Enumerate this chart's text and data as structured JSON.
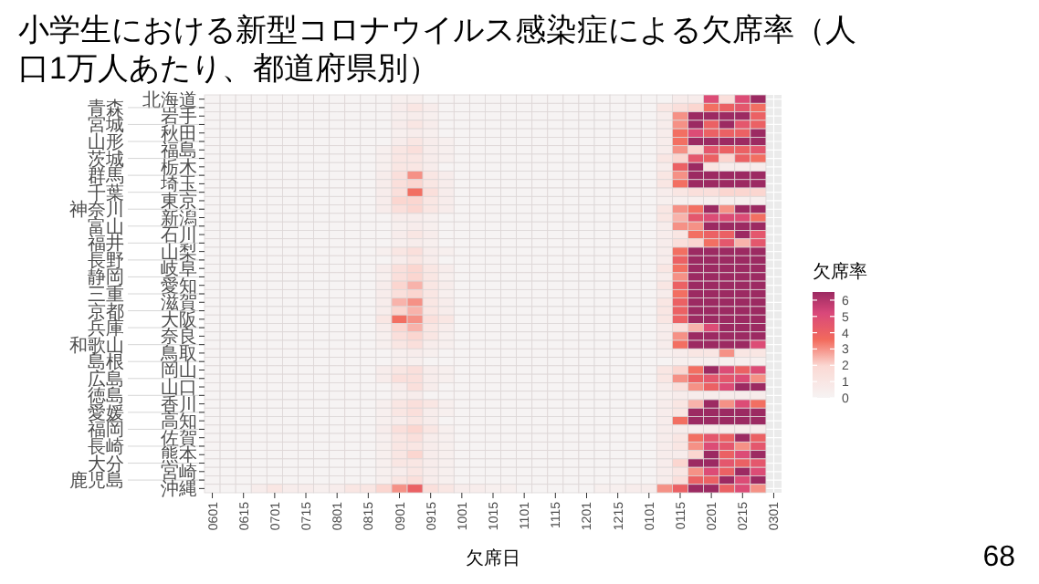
{
  "chart_data": {
    "type": "heatmap",
    "title": "小学生における新型コロナウイルス感染症による欠席率（人口1万人あたり、都道府県別）",
    "xlabel": "欠席日",
    "clabel": "欠席率",
    "clim": [
      0,
      6.5
    ],
    "cticks": [
      0,
      1,
      2,
      3,
      4,
      5,
      6
    ],
    "grid": true,
    "annotations": [
      "68"
    ],
    "categories": [
      "0601",
      null,
      "0615",
      null,
      "0701",
      null,
      "0715",
      null,
      "0801",
      null,
      "0815",
      null,
      "0901",
      null,
      "0915",
      null,
      "1001",
      null,
      "1015",
      null,
      "1101",
      null,
      "1115",
      null,
      "1201",
      null,
      "1215",
      null,
      "0101",
      null,
      "0115",
      null,
      "0201",
      null,
      "0215",
      null,
      "0301"
    ],
    "y_categories": [
      "北海道",
      "青森",
      "岩手",
      "宮城",
      "秋田",
      "山形",
      "福島",
      "茨城",
      "栃木",
      "群馬",
      "埼玉",
      "千葉",
      "東京",
      "神奈川",
      "新潟",
      "富山",
      "石川",
      "福井",
      "山梨",
      "長野",
      "岐阜",
      "静岡",
      "愛知",
      "三重",
      "滋賀",
      "京都",
      "大阪",
      "兵庫",
      "奈良",
      "和歌山",
      "鳥取",
      "島根",
      "岡山",
      "広島",
      "山口",
      "徳島",
      "香川",
      "愛媛",
      "高知",
      "福岡",
      "佐賀",
      "長崎",
      "熊本",
      "大分",
      "宮崎",
      "鹿児島",
      "沖縄"
    ],
    "cells": [
      [
        0,
        0,
        0,
        0,
        0,
        0,
        0,
        0,
        0,
        0,
        0,
        0,
        0.3,
        0.3,
        0,
        0,
        0,
        0,
        0,
        0,
        0,
        0,
        0,
        0,
        0,
        0,
        0,
        0,
        0,
        0,
        0.5,
        0.5,
        5,
        1.5,
        5,
        6.5,
        null
      ],
      [
        0,
        0,
        0,
        0,
        0,
        0,
        0,
        0,
        0,
        0,
        0,
        0,
        0.5,
        1,
        0.5,
        0,
        0,
        0,
        0,
        0,
        0,
        0,
        0,
        0,
        0,
        0,
        0,
        0,
        0,
        1,
        1.5,
        2,
        3.5,
        4,
        4.5,
        3.5,
        null
      ],
      [
        0,
        0,
        0,
        0,
        0,
        0,
        0,
        0,
        0,
        0,
        0,
        0,
        0.3,
        0.5,
        0.3,
        0,
        0,
        0,
        0,
        0,
        0,
        0,
        0,
        0,
        0,
        0,
        0,
        0,
        0,
        0.5,
        3,
        6.5,
        6.5,
        6.5,
        6.5,
        4,
        null
      ],
      [
        0,
        0,
        0,
        0,
        0,
        0,
        0,
        0,
        0,
        0,
        0,
        0,
        0.5,
        1,
        0.5,
        0,
        0,
        0,
        0,
        0,
        0,
        0,
        0,
        0,
        0,
        0,
        0,
        0,
        0,
        0.5,
        3,
        6.5,
        4,
        6.5,
        4.5,
        4,
        null
      ],
      [
        0,
        0,
        0,
        0,
        0,
        0,
        0,
        0,
        0,
        0,
        0,
        0,
        0.3,
        0.5,
        0.3,
        0,
        0,
        0,
        0,
        0,
        0,
        0,
        0,
        0,
        0,
        0,
        0,
        0,
        0,
        0.5,
        3.5,
        5,
        4,
        4,
        4,
        6.5,
        null
      ],
      [
        0,
        0,
        0,
        0,
        0,
        0,
        0,
        0,
        0,
        0,
        0,
        0,
        0.5,
        1,
        0.5,
        0.3,
        0,
        0,
        0,
        0,
        0,
        0,
        0,
        0,
        0,
        0,
        0,
        0,
        0,
        0.5,
        3.5,
        6.5,
        6.5,
        6.5,
        6.5,
        6.5,
        null
      ],
      [
        0,
        0,
        0,
        0,
        0,
        0,
        0,
        0,
        0,
        0,
        0,
        0.3,
        1,
        1.5,
        0.5,
        0.3,
        0,
        0,
        0,
        0,
        0,
        0,
        0,
        0,
        0,
        0,
        0,
        0,
        0,
        0.5,
        3,
        2,
        4.5,
        4,
        4,
        4.5,
        null
      ],
      [
        0,
        0,
        0,
        0,
        0,
        0,
        0,
        0,
        0,
        0,
        0,
        0.3,
        1,
        1,
        0.5,
        0.3,
        0,
        0,
        0,
        0,
        0,
        0,
        0,
        0,
        0,
        0,
        0,
        0,
        0,
        1,
        2,
        4.5,
        4,
        2,
        4,
        3.5,
        null
      ],
      [
        0,
        0,
        0,
        0,
        0,
        0,
        0,
        0,
        0,
        0,
        0,
        0.3,
        1,
        1,
        0.5,
        0,
        0,
        0,
        0,
        0,
        0,
        0,
        0,
        0,
        0,
        0,
        0,
        0,
        0,
        0.5,
        4,
        6.5,
        1,
        0.5,
        0.5,
        0.5,
        null
      ],
      [
        0,
        0,
        0,
        0,
        0,
        0,
        0,
        0,
        0,
        0,
        0,
        0.5,
        1.5,
        3,
        1,
        0.5,
        0,
        0,
        0,
        0,
        0,
        0,
        0,
        0,
        0,
        0,
        0,
        0,
        0,
        1,
        3,
        6.5,
        6.5,
        6.5,
        6.5,
        6.5,
        null
      ],
      [
        0,
        0,
        0,
        0,
        0,
        0,
        0,
        0,
        0,
        0,
        0,
        0.5,
        1.5,
        2,
        1,
        0.5,
        0,
        0,
        0,
        0,
        0,
        0,
        0,
        0,
        0,
        0,
        0,
        0,
        0,
        1,
        3.5,
        6.5,
        6.5,
        6.5,
        6.5,
        6.5,
        null
      ],
      [
        0,
        0,
        0,
        0,
        0,
        0,
        0,
        0,
        0,
        0,
        0,
        0.5,
        1.5,
        3.5,
        1.5,
        0.5,
        0,
        0,
        0,
        0,
        0,
        0,
        0,
        0,
        0,
        0,
        0,
        0,
        0,
        0.5,
        1,
        1.5,
        1.5,
        2,
        2,
        2,
        null
      ],
      [
        0,
        0,
        0,
        0,
        0,
        0,
        0,
        0,
        0,
        0,
        0,
        0.5,
        2,
        2,
        1,
        0.5,
        0,
        0,
        0,
        0,
        0,
        0,
        0,
        0,
        0,
        0,
        0,
        0,
        0,
        0.3,
        0.3,
        0.3,
        0.3,
        0.3,
        0.3,
        0.3,
        null
      ],
      [
        0,
        0,
        0,
        0,
        0,
        0,
        0,
        0,
        0,
        0,
        0,
        0.5,
        1.5,
        2,
        1,
        0.5,
        0,
        0,
        0,
        0,
        0,
        0,
        0,
        0,
        0,
        0,
        0,
        0,
        0,
        1,
        3,
        3.5,
        6.5,
        3,
        6.5,
        6.5,
        null
      ],
      [
        0,
        0,
        0,
        0,
        0,
        0,
        0,
        0,
        0,
        0,
        0,
        0,
        0.5,
        0.5,
        0.3,
        0,
        0,
        0,
        0,
        0,
        0,
        0,
        0,
        0,
        0,
        0,
        0,
        0,
        0,
        1,
        2.5,
        4.5,
        5,
        5,
        5,
        3.5,
        null
      ],
      [
        0,
        0,
        0,
        0,
        0,
        0,
        0,
        0,
        0,
        0,
        0,
        0,
        0.3,
        0.5,
        0.3,
        0,
        0,
        0,
        0,
        0,
        0,
        0,
        0,
        0,
        0,
        0,
        0,
        0,
        0,
        0.5,
        3,
        3,
        6.5,
        6.5,
        6.5,
        6.5,
        null
      ],
      [
        0,
        0,
        0,
        0,
        0,
        0,
        0,
        0,
        0,
        0,
        0,
        0,
        0.5,
        1,
        0.5,
        0,
        0,
        0,
        0,
        0,
        0,
        0,
        0,
        0,
        0,
        0,
        0,
        0,
        0,
        0.5,
        1,
        3.5,
        4,
        4,
        6.5,
        4.5,
        null
      ],
      [
        0,
        0,
        0,
        0,
        0,
        0,
        0,
        0,
        0,
        0,
        0,
        0,
        0.3,
        0.5,
        0.3,
        0,
        0,
        0,
        0,
        0,
        0,
        0,
        0,
        0,
        0,
        0,
        0,
        0,
        0,
        0.5,
        1.5,
        2,
        3.5,
        4.5,
        2.5,
        4.5,
        null
      ],
      [
        0,
        0,
        0,
        0,
        0,
        0,
        0,
        0,
        0,
        0,
        0,
        0.3,
        1,
        1.5,
        0.5,
        0.3,
        0,
        0,
        0,
        0,
        0,
        0,
        0,
        0,
        0,
        0,
        0,
        0,
        0,
        0.5,
        3.5,
        6.5,
        6.5,
        6.5,
        6.5,
        6.5,
        null
      ],
      [
        0,
        0,
        0,
        0,
        0,
        0,
        0,
        0,
        0,
        0,
        0,
        0,
        0.5,
        1,
        0.5,
        0,
        0,
        0,
        0,
        0,
        0,
        0,
        0,
        0,
        0,
        0,
        0,
        0,
        0,
        0.5,
        4,
        6.5,
        6.5,
        6.5,
        6.5,
        6.5,
        null
      ],
      [
        0,
        0,
        0,
        0,
        0,
        0,
        0,
        0,
        0,
        0,
        0,
        0.5,
        1.5,
        2,
        1,
        0.5,
        0,
        0,
        0,
        0,
        0,
        0,
        0,
        0,
        0,
        0,
        0,
        0,
        0,
        1,
        3.5,
        6.5,
        6.5,
        6.5,
        6.5,
        6.5,
        null
      ],
      [
        0,
        0,
        0,
        0,
        0,
        0,
        0,
        0,
        0,
        0,
        0,
        0.3,
        1.5,
        2,
        1,
        0.3,
        0,
        0,
        0,
        0,
        0,
        0,
        0,
        0,
        0,
        0,
        0,
        0,
        0,
        0.5,
        3,
        6.5,
        6.5,
        6.5,
        6.5,
        6.5,
        null
      ],
      [
        0,
        0,
        0,
        0,
        0,
        0,
        0,
        0,
        0,
        0,
        0,
        0.5,
        2,
        2.5,
        1,
        0.5,
        0,
        0,
        0,
        0,
        0,
        0,
        0,
        0,
        0,
        0,
        0,
        0,
        0,
        1,
        4,
        6.5,
        6.5,
        6.5,
        6.5,
        6.5,
        null
      ],
      [
        0,
        0,
        0,
        0,
        0,
        0,
        0,
        0,
        0,
        0,
        0,
        0.5,
        1.5,
        2,
        1,
        0.3,
        0,
        0,
        0,
        0,
        0,
        0,
        0,
        0,
        0,
        0,
        0,
        0,
        0,
        0.5,
        3.5,
        6.5,
        6.5,
        6.5,
        6.5,
        6.5,
        null
      ],
      [
        0,
        0,
        0,
        0,
        0,
        0,
        0,
        0,
        0,
        0,
        0,
        0.5,
        2.5,
        3,
        1,
        0.5,
        0,
        0,
        0,
        0,
        0,
        0,
        0,
        0,
        0,
        0,
        0,
        0,
        0,
        1,
        4,
        6.5,
        6.5,
        6.5,
        6.5,
        6.5,
        null
      ],
      [
        0,
        0,
        0,
        0,
        0,
        0,
        0,
        0,
        0,
        0,
        0,
        0.5,
        2,
        2.5,
        1,
        0.5,
        0,
        0,
        0,
        0,
        0,
        0,
        0,
        0,
        0,
        0,
        0,
        0,
        0,
        1,
        4,
        6.5,
        6.5,
        6.5,
        6.5,
        6.5,
        null
      ],
      [
        0,
        0,
        0,
        0,
        0,
        0,
        0,
        0,
        0,
        0,
        0,
        1,
        3.5,
        3,
        1.5,
        1,
        0,
        0,
        0,
        0,
        0,
        0,
        0,
        0,
        0,
        0,
        0,
        0,
        0,
        1,
        4,
        6.5,
        6.5,
        6.5,
        6.5,
        6.5,
        null
      ],
      [
        0,
        0,
        0,
        0,
        0,
        0,
        0,
        0,
        0,
        0,
        0,
        0.5,
        2,
        2.5,
        1,
        0.5,
        0,
        0,
        0,
        0,
        0,
        0,
        0,
        0,
        0,
        0,
        0,
        0,
        0,
        0.5,
        1.5,
        2.5,
        5,
        6.5,
        6.5,
        6.5,
        null
      ],
      [
        0,
        0,
        0,
        0,
        0,
        0,
        0,
        0,
        0,
        0,
        0,
        0.3,
        1.5,
        2,
        1,
        0.3,
        0,
        0,
        0,
        0,
        0,
        0,
        0,
        0,
        0,
        0,
        0,
        0,
        0,
        0.5,
        3,
        6.5,
        6.5,
        6.5,
        6.5,
        6.5,
        null
      ],
      [
        0,
        0,
        0,
        0,
        0,
        0,
        0,
        0,
        0,
        0,
        0,
        0.3,
        1,
        1.5,
        0.5,
        0.3,
        0,
        0,
        0,
        0,
        0,
        0,
        0,
        0,
        0,
        0,
        0,
        0,
        0,
        0.5,
        3.5,
        6.5,
        6.5,
        6.5,
        6.5,
        5,
        null
      ],
      [
        0,
        0,
        0,
        0,
        0,
        0,
        0,
        0,
        0,
        0,
        0,
        0,
        0.3,
        0.5,
        0.3,
        0,
        0,
        0,
        0,
        0,
        0,
        0,
        0,
        0,
        0,
        0,
        0,
        0,
        0,
        0.3,
        0.5,
        1,
        1,
        3,
        1,
        1,
        null
      ],
      [
        0,
        0,
        0,
        0,
        0,
        0,
        0,
        0,
        0,
        0,
        0,
        0,
        0.3,
        0.3,
        0,
        0,
        0,
        0,
        0,
        0,
        0,
        0,
        0,
        0,
        0,
        0,
        0,
        0,
        0,
        0,
        0.3,
        0.3,
        0.3,
        0.3,
        0.3,
        0.3,
        null
      ],
      [
        0,
        0,
        0,
        0,
        0,
        0,
        0,
        0,
        0,
        0,
        0,
        0.5,
        1,
        1.5,
        0.5,
        0.3,
        0,
        0,
        0,
        0,
        0,
        0,
        0,
        0,
        0,
        0,
        0,
        0,
        0,
        1,
        2,
        3.5,
        6.5,
        5,
        4,
        5,
        null
      ],
      [
        0,
        0,
        0,
        0,
        0,
        0,
        0,
        0,
        0,
        0,
        0,
        0.5,
        1.5,
        1.5,
        0.5,
        0.3,
        0,
        0,
        0,
        0,
        0,
        0,
        0,
        0,
        0,
        0,
        0,
        0,
        0,
        1,
        3,
        4,
        4.5,
        4.5,
        5,
        3,
        null
      ],
      [
        0,
        0,
        0,
        0,
        0,
        0,
        0,
        0,
        0,
        0,
        0,
        0,
        0.5,
        1.5,
        0.5,
        0,
        0,
        0,
        0,
        0,
        0,
        0,
        0,
        0,
        0,
        0,
        0,
        0,
        0,
        0.5,
        1.5,
        3,
        4,
        5,
        6.5,
        6.5,
        null
      ],
      [
        0,
        0,
        0,
        0,
        0,
        0,
        0,
        0,
        0,
        0,
        0,
        0,
        0.3,
        0.5,
        0,
        0,
        0,
        0,
        0,
        0,
        0,
        0,
        0,
        0,
        0,
        0,
        0,
        0,
        0,
        0.3,
        0.5,
        0.5,
        0.5,
        0.5,
        0.5,
        0.5,
        null
      ],
      [
        0,
        0,
        0,
        0,
        0,
        0,
        0,
        0,
        0,
        0,
        0,
        0.3,
        1,
        1.5,
        1,
        0.3,
        0,
        0,
        0,
        0,
        0,
        0,
        0,
        0,
        0,
        0,
        0,
        0,
        0,
        0.5,
        1,
        2.5,
        6.5,
        3,
        5,
        3.5,
        null
      ],
      [
        0,
        0,
        0,
        0,
        0,
        0,
        0,
        0,
        0,
        0,
        0,
        0.3,
        1,
        1.5,
        0.5,
        0.3,
        0,
        0,
        0,
        0,
        0,
        0,
        0,
        0,
        0,
        0,
        0,
        0,
        0,
        0.5,
        1,
        6.5,
        6.5,
        6.5,
        6.5,
        6.5,
        null
      ],
      [
        0,
        0,
        0,
        0,
        0,
        0,
        0,
        0,
        0,
        0,
        0,
        0.3,
        0.5,
        1,
        0.5,
        0,
        0,
        0,
        0,
        0,
        0,
        0,
        0,
        0,
        0,
        0,
        0,
        0,
        0,
        0.5,
        3.5,
        6.5,
        6.5,
        6.5,
        6.5,
        6.5,
        null
      ],
      [
        0,
        0,
        0,
        0,
        0,
        0,
        0,
        0,
        0,
        0,
        0,
        0.5,
        1.5,
        2,
        1,
        0.3,
        0,
        0,
        0,
        0,
        0,
        0,
        0,
        0,
        0,
        0,
        0,
        0,
        0,
        0.5,
        0.5,
        0.5,
        0.5,
        0.5,
        0.5,
        0.5,
        null
      ],
      [
        0,
        0,
        0,
        0,
        0,
        0,
        0,
        0,
        0,
        0,
        0,
        0.3,
        1,
        1.5,
        0.5,
        0.3,
        0,
        0,
        0,
        0,
        0,
        0,
        0,
        0,
        0,
        0,
        0,
        0,
        0,
        0.5,
        1,
        3.5,
        4.5,
        4,
        6.5,
        4,
        null
      ],
      [
        0,
        0,
        0,
        0,
        0,
        0,
        0,
        0,
        0,
        0,
        0,
        0.3,
        1,
        1,
        0.5,
        0.3,
        0,
        0,
        0,
        0,
        0,
        0,
        0,
        0,
        0,
        0,
        0,
        0,
        0,
        0.5,
        1,
        3,
        5,
        4.5,
        3,
        4.5,
        null
      ],
      [
        0,
        0,
        0,
        0,
        0,
        0,
        0,
        0,
        0,
        0,
        0,
        0.3,
        1,
        2,
        0.5,
        0.3,
        0,
        0,
        0,
        0,
        0,
        0,
        0,
        0,
        0,
        0,
        0,
        0,
        0,
        0.5,
        0.5,
        2,
        6.5,
        4,
        5,
        6.5,
        null
      ],
      [
        0,
        0,
        0,
        0,
        0,
        0,
        0,
        0,
        0,
        0,
        0,
        0.3,
        1,
        1,
        0.5,
        0.3,
        0,
        0,
        0,
        0,
        0,
        0,
        0,
        0,
        0,
        0,
        0,
        0,
        0,
        0.5,
        2,
        6.5,
        6.5,
        4.5,
        4,
        4.5,
        null
      ],
      [
        0,
        0,
        0,
        0,
        0,
        0,
        0,
        0,
        0,
        0,
        0,
        0.3,
        0.5,
        1,
        0.5,
        0.3,
        0,
        0,
        0,
        0,
        0,
        0,
        0,
        0,
        0,
        0,
        0,
        0,
        0,
        0.5,
        1,
        3,
        5,
        4,
        6.5,
        5,
        null
      ],
      [
        0,
        0,
        0,
        0,
        0,
        0,
        0,
        0,
        0,
        0,
        0,
        0.3,
        1,
        1.5,
        0.5,
        0.3,
        0,
        0,
        0,
        0,
        0,
        0,
        0,
        0,
        0,
        0,
        0,
        0,
        0,
        0.5,
        1.5,
        4,
        4,
        6.5,
        5,
        6.5,
        null
      ],
      [
        0,
        0,
        0,
        0.5,
        1,
        0.5,
        0.5,
        0.3,
        0.5,
        1,
        1,
        2,
        3,
        4,
        1.5,
        1,
        0.5,
        0.5,
        0.3,
        0.3,
        0,
        0,
        0,
        0,
        0,
        0.3,
        0.3,
        0.5,
        0.5,
        3,
        4,
        6.5,
        6.5,
        4,
        5,
        3,
        null
      ]
    ]
  }
}
